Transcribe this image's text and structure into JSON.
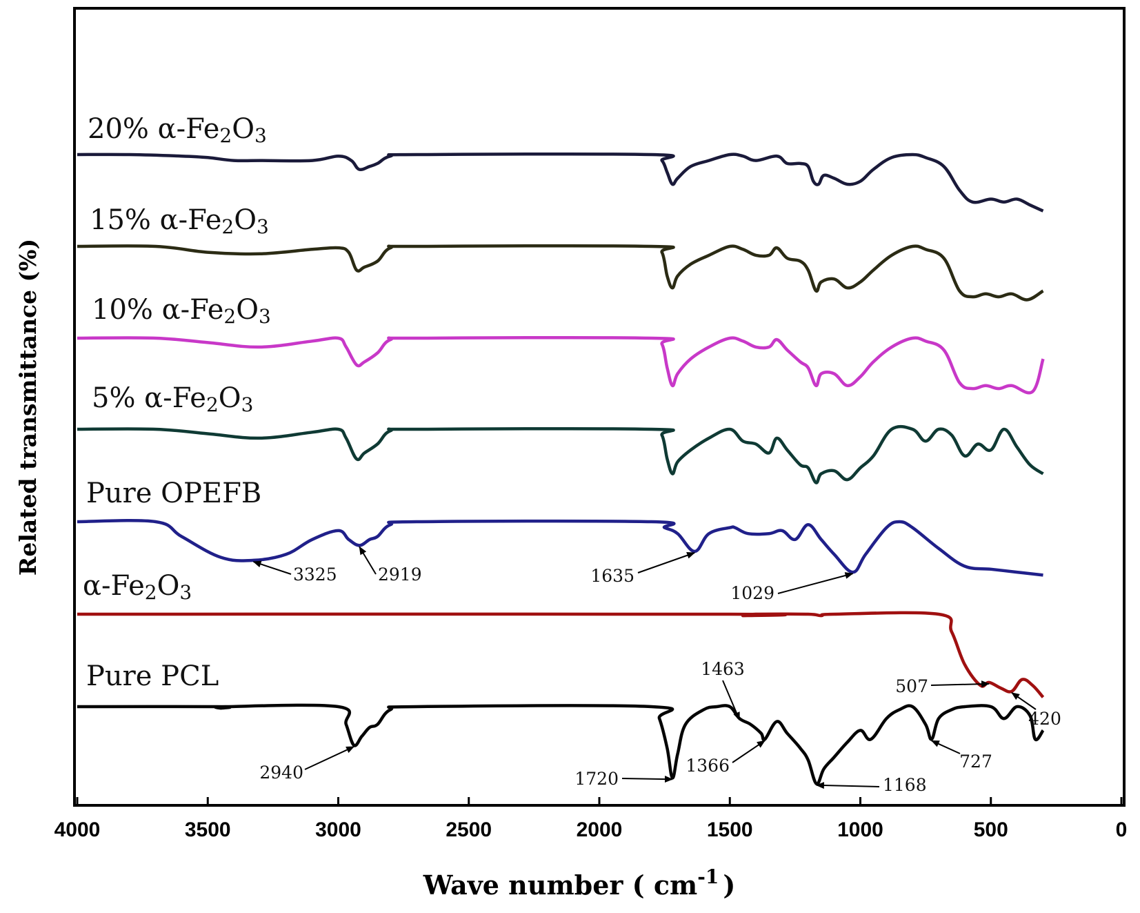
{
  "chart_data": {
    "type": "line",
    "title": "",
    "xlabel": "Wave number ( cm -1 )",
    "xlabel_parts": {
      "main": "Wave number ( cm",
      "sup": "-1",
      "close": ")"
    },
    "ylabel": "Related transmittance (%)",
    "xlim": [
      4000,
      0
    ],
    "x_ticks": [
      4000,
      3500,
      3000,
      2500,
      2000,
      1500,
      1000,
      500,
      0
    ],
    "grid": false,
    "series": [
      {
        "name": "20% α-Fe2O3",
        "label_parts": {
          "pre": "20% α-Fe",
          "s1": "2",
          "mid": "O",
          "s2": "3"
        },
        "color": "#1a1a3a",
        "points": [
          [
            4000,
            0
          ],
          [
            3800,
            0
          ],
          [
            3600,
            -0.5
          ],
          [
            3500,
            -1
          ],
          [
            3400,
            -2
          ],
          [
            3300,
            -2
          ],
          [
            3100,
            -2
          ],
          [
            3000,
            -0.5
          ],
          [
            2950,
            -2
          ],
          [
            2920,
            -5
          ],
          [
            2880,
            -4
          ],
          [
            2850,
            -3
          ],
          [
            2800,
            -0.5
          ],
          [
            2700,
            0
          ],
          [
            1800,
            0
          ],
          [
            1760,
            -2
          ],
          [
            1740,
            -6
          ],
          [
            1720,
            -10
          ],
          [
            1700,
            -8
          ],
          [
            1650,
            -4
          ],
          [
            1580,
            -2
          ],
          [
            1500,
            0
          ],
          [
            1450,
            -0.5
          ],
          [
            1400,
            -2
          ],
          [
            1320,
            -0.5
          ],
          [
            1280,
            -3
          ],
          [
            1230,
            -3
          ],
          [
            1200,
            -4
          ],
          [
            1180,
            -9
          ],
          [
            1160,
            -10
          ],
          [
            1140,
            -7
          ],
          [
            1100,
            -8
          ],
          [
            1050,
            -10
          ],
          [
            1000,
            -9
          ],
          [
            950,
            -5
          ],
          [
            880,
            -1
          ],
          [
            800,
            0
          ],
          [
            750,
            -1
          ],
          [
            680,
            -4
          ],
          [
            620,
            -12
          ],
          [
            570,
            -16
          ],
          [
            500,
            -15
          ],
          [
            450,
            -16
          ],
          [
            400,
            -15
          ],
          [
            350,
            -17
          ],
          [
            300,
            -19
          ]
        ]
      },
      {
        "name": "15% α-Fe2O3",
        "label_parts": {
          "pre": "15% α-Fe",
          "s1": "2",
          "mid": "O",
          "s2": "3"
        },
        "color": "#2b2b14",
        "points": [
          [
            4000,
            0
          ],
          [
            3700,
            0
          ],
          [
            3500,
            -2
          ],
          [
            3300,
            -2.5
          ],
          [
            3100,
            -1
          ],
          [
            3000,
            -0.5
          ],
          [
            2960,
            -2
          ],
          [
            2930,
            -8
          ],
          [
            2900,
            -7
          ],
          [
            2850,
            -5
          ],
          [
            2800,
            -0.5
          ],
          [
            2700,
            0
          ],
          [
            1800,
            0
          ],
          [
            1760,
            -2
          ],
          [
            1740,
            -10
          ],
          [
            1720,
            -14
          ],
          [
            1700,
            -10
          ],
          [
            1650,
            -6
          ],
          [
            1580,
            -3
          ],
          [
            1500,
            0
          ],
          [
            1450,
            -1
          ],
          [
            1400,
            -3
          ],
          [
            1350,
            -3
          ],
          [
            1320,
            -0.5
          ],
          [
            1280,
            -4
          ],
          [
            1230,
            -5
          ],
          [
            1200,
            -8
          ],
          [
            1170,
            -15
          ],
          [
            1150,
            -12
          ],
          [
            1100,
            -11
          ],
          [
            1050,
            -14
          ],
          [
            1000,
            -12
          ],
          [
            950,
            -8
          ],
          [
            880,
            -3
          ],
          [
            800,
            0
          ],
          [
            750,
            -1
          ],
          [
            680,
            -4
          ],
          [
            620,
            -15
          ],
          [
            570,
            -17
          ],
          [
            520,
            -16
          ],
          [
            470,
            -17
          ],
          [
            420,
            -16
          ],
          [
            360,
            -18
          ],
          [
            300,
            -15
          ]
        ]
      },
      {
        "name": "10% α-Fe2O3",
        "label_parts": {
          "pre": "10% α-Fe",
          "s1": "2",
          "mid": "O",
          "s2": "3"
        },
        "color": "#c838c8",
        "points": [
          [
            4000,
            0
          ],
          [
            3700,
            0
          ],
          [
            3500,
            -1.5
          ],
          [
            3300,
            -3
          ],
          [
            3100,
            -1
          ],
          [
            3000,
            0
          ],
          [
            2970,
            -3
          ],
          [
            2930,
            -9
          ],
          [
            2900,
            -8
          ],
          [
            2850,
            -5
          ],
          [
            2800,
            -0.5
          ],
          [
            2700,
            0
          ],
          [
            1800,
            0
          ],
          [
            1760,
            -2
          ],
          [
            1740,
            -10
          ],
          [
            1720,
            -16
          ],
          [
            1700,
            -12
          ],
          [
            1650,
            -7
          ],
          [
            1580,
            -3
          ],
          [
            1500,
            0
          ],
          [
            1450,
            -1
          ],
          [
            1400,
            -3
          ],
          [
            1350,
            -3
          ],
          [
            1320,
            -0.5
          ],
          [
            1280,
            -4
          ],
          [
            1230,
            -8
          ],
          [
            1200,
            -10
          ],
          [
            1170,
            -16
          ],
          [
            1150,
            -12
          ],
          [
            1100,
            -12
          ],
          [
            1050,
            -16
          ],
          [
            1000,
            -13
          ],
          [
            950,
            -8
          ],
          [
            880,
            -3
          ],
          [
            800,
            0
          ],
          [
            750,
            -1
          ],
          [
            680,
            -4
          ],
          [
            620,
            -15
          ],
          [
            570,
            -17
          ],
          [
            520,
            -16
          ],
          [
            470,
            -17
          ],
          [
            420,
            -16
          ],
          [
            340,
            -18
          ],
          [
            300,
            -7
          ]
        ]
      },
      {
        "name": "5% α-Fe2O3",
        "label_parts": {
          "pre": "5% α-Fe",
          "s1": "2",
          "mid": "O",
          "s2": "3"
        },
        "color": "#0f3a34",
        "points": [
          [
            4000,
            0
          ],
          [
            3700,
            0
          ],
          [
            3500,
            -1.5
          ],
          [
            3300,
            -3
          ],
          [
            3100,
            -1
          ],
          [
            3000,
            0
          ],
          [
            2970,
            -3
          ],
          [
            2930,
            -10
          ],
          [
            2900,
            -8
          ],
          [
            2850,
            -5
          ],
          [
            2800,
            -0.5
          ],
          [
            2700,
            0
          ],
          [
            1800,
            0
          ],
          [
            1760,
            -2
          ],
          [
            1740,
            -10
          ],
          [
            1720,
            -15
          ],
          [
            1700,
            -11
          ],
          [
            1650,
            -7
          ],
          [
            1580,
            -3
          ],
          [
            1500,
            0
          ],
          [
            1450,
            -4
          ],
          [
            1400,
            -5
          ],
          [
            1350,
            -8
          ],
          [
            1320,
            -3
          ],
          [
            1280,
            -7
          ],
          [
            1230,
            -12
          ],
          [
            1200,
            -13
          ],
          [
            1170,
            -18
          ],
          [
            1150,
            -15
          ],
          [
            1100,
            -14
          ],
          [
            1050,
            -17
          ],
          [
            1000,
            -13
          ],
          [
            950,
            -9
          ],
          [
            880,
            0
          ],
          [
            800,
            0
          ],
          [
            750,
            -4
          ],
          [
            700,
            0
          ],
          [
            650,
            -2
          ],
          [
            600,
            -9
          ],
          [
            550,
            -5
          ],
          [
            500,
            -7
          ],
          [
            450,
            0
          ],
          [
            400,
            -6
          ],
          [
            350,
            -12
          ],
          [
            300,
            -15
          ]
        ]
      },
      {
        "name": "Pure OPEFB",
        "label_parts": {
          "pre": "Pure OPEFB",
          "s1": "",
          "mid": "",
          "s2": ""
        },
        "color": "#20208a",
        "points": [
          [
            4000,
            0
          ],
          [
            3700,
            0
          ],
          [
            3600,
            -5
          ],
          [
            3450,
            -12
          ],
          [
            3325,
            -13
          ],
          [
            3200,
            -11
          ],
          [
            3100,
            -6
          ],
          [
            3000,
            -3
          ],
          [
            2960,
            -6
          ],
          [
            2919,
            -8
          ],
          [
            2880,
            -6
          ],
          [
            2850,
            -5
          ],
          [
            2800,
            -1
          ],
          [
            2700,
            0
          ],
          [
            1800,
            0
          ],
          [
            1750,
            -2
          ],
          [
            1700,
            -4
          ],
          [
            1635,
            -10
          ],
          [
            1580,
            -4
          ],
          [
            1500,
            -2
          ],
          [
            1480,
            -2
          ],
          [
            1430,
            -4
          ],
          [
            1350,
            -4
          ],
          [
            1300,
            -3
          ],
          [
            1250,
            -6
          ],
          [
            1200,
            -1
          ],
          [
            1150,
            -6
          ],
          [
            1100,
            -11
          ],
          [
            1029,
            -17
          ],
          [
            980,
            -11
          ],
          [
            900,
            -2
          ],
          [
            850,
            0
          ],
          [
            800,
            -2
          ],
          [
            700,
            -9
          ],
          [
            600,
            -15
          ],
          [
            500,
            -16
          ],
          [
            400,
            -17
          ],
          [
            300,
            -18
          ]
        ]
      },
      {
        "name": "α-Fe2O3",
        "label_parts": {
          "pre": "α-Fe",
          "s1": "2",
          "mid": "O",
          "s2": "3"
        },
        "color": "#a01010",
        "points": [
          [
            4000,
            0
          ],
          [
            1500,
            0
          ],
          [
            1450,
            -0.5
          ],
          [
            1400,
            0
          ],
          [
            1200,
            0
          ],
          [
            1150,
            -0.5
          ],
          [
            1100,
            0
          ],
          [
            700,
            0
          ],
          [
            650,
            -6
          ],
          [
            600,
            -17
          ],
          [
            540,
            -24
          ],
          [
            507,
            -23
          ],
          [
            460,
            -25
          ],
          [
            420,
            -26
          ],
          [
            380,
            -22
          ],
          [
            340,
            -24
          ],
          [
            300,
            -28
          ]
        ]
      },
      {
        "name": "Pure PCL",
        "label_parts": {
          "pre": "Pure PCL",
          "s1": "",
          "mid": "",
          "s2": ""
        },
        "color": "#050505",
        "points": [
          [
            4000,
            0
          ],
          [
            3460,
            0
          ],
          [
            3450,
            -0.5
          ],
          [
            3430,
            0
          ],
          [
            3000,
            0
          ],
          [
            2970,
            -6
          ],
          [
            2940,
            -13
          ],
          [
            2910,
            -10
          ],
          [
            2880,
            -7
          ],
          [
            2850,
            -6
          ],
          [
            2800,
            -1
          ],
          [
            2700,
            0
          ],
          [
            1800,
            0
          ],
          [
            1770,
            -4
          ],
          [
            1740,
            -14
          ],
          [
            1720,
            -24
          ],
          [
            1700,
            -16
          ],
          [
            1670,
            -6
          ],
          [
            1600,
            -1
          ],
          [
            1550,
            0
          ],
          [
            1500,
            0
          ],
          [
            1463,
            -4
          ],
          [
            1420,
            -6
          ],
          [
            1380,
            -9
          ],
          [
            1366,
            -11
          ],
          [
            1320,
            -5
          ],
          [
            1280,
            -9
          ],
          [
            1230,
            -14
          ],
          [
            1200,
            -18
          ],
          [
            1168,
            -26
          ],
          [
            1140,
            -21
          ],
          [
            1100,
            -17
          ],
          [
            1050,
            -12
          ],
          [
            1000,
            -8
          ],
          [
            960,
            -11
          ],
          [
            900,
            -4
          ],
          [
            850,
            -1
          ],
          [
            800,
            0
          ],
          [
            750,
            -6
          ],
          [
            727,
            -11
          ],
          [
            700,
            -4
          ],
          [
            650,
            -1
          ],
          [
            600,
            0
          ],
          [
            500,
            0
          ],
          [
            450,
            -4
          ],
          [
            400,
            0
          ],
          [
            350,
            -3
          ],
          [
            330,
            -11
          ],
          [
            300,
            -8
          ]
        ]
      }
    ],
    "annotations": [
      {
        "text": "3325",
        "target_wavenumber": 3325,
        "series": "Pure OPEFB"
      },
      {
        "text": "2919",
        "target_wavenumber": 2919,
        "series": "Pure OPEFB"
      },
      {
        "text": "1635",
        "target_wavenumber": 1635,
        "series": "Pure OPEFB"
      },
      {
        "text": "1029",
        "target_wavenumber": 1029,
        "series": "Pure OPEFB"
      },
      {
        "text": "507",
        "target_wavenumber": 507,
        "series": "α-Fe2O3"
      },
      {
        "text": "420",
        "target_wavenumber": 420,
        "series": "α-Fe2O3"
      },
      {
        "text": "2940",
        "target_wavenumber": 2940,
        "series": "Pure PCL"
      },
      {
        "text": "1463",
        "target_wavenumber": 1463,
        "series": "Pure PCL"
      },
      {
        "text": "1366",
        "target_wavenumber": 1366,
        "series": "Pure PCL"
      },
      {
        "text": "1720",
        "target_wavenumber": 1720,
        "series": "Pure PCL"
      },
      {
        "text": "1168",
        "target_wavenumber": 1168,
        "series": "Pure PCL"
      },
      {
        "text": "727",
        "target_wavenumber": 727,
        "series": "Pure PCL"
      }
    ]
  }
}
